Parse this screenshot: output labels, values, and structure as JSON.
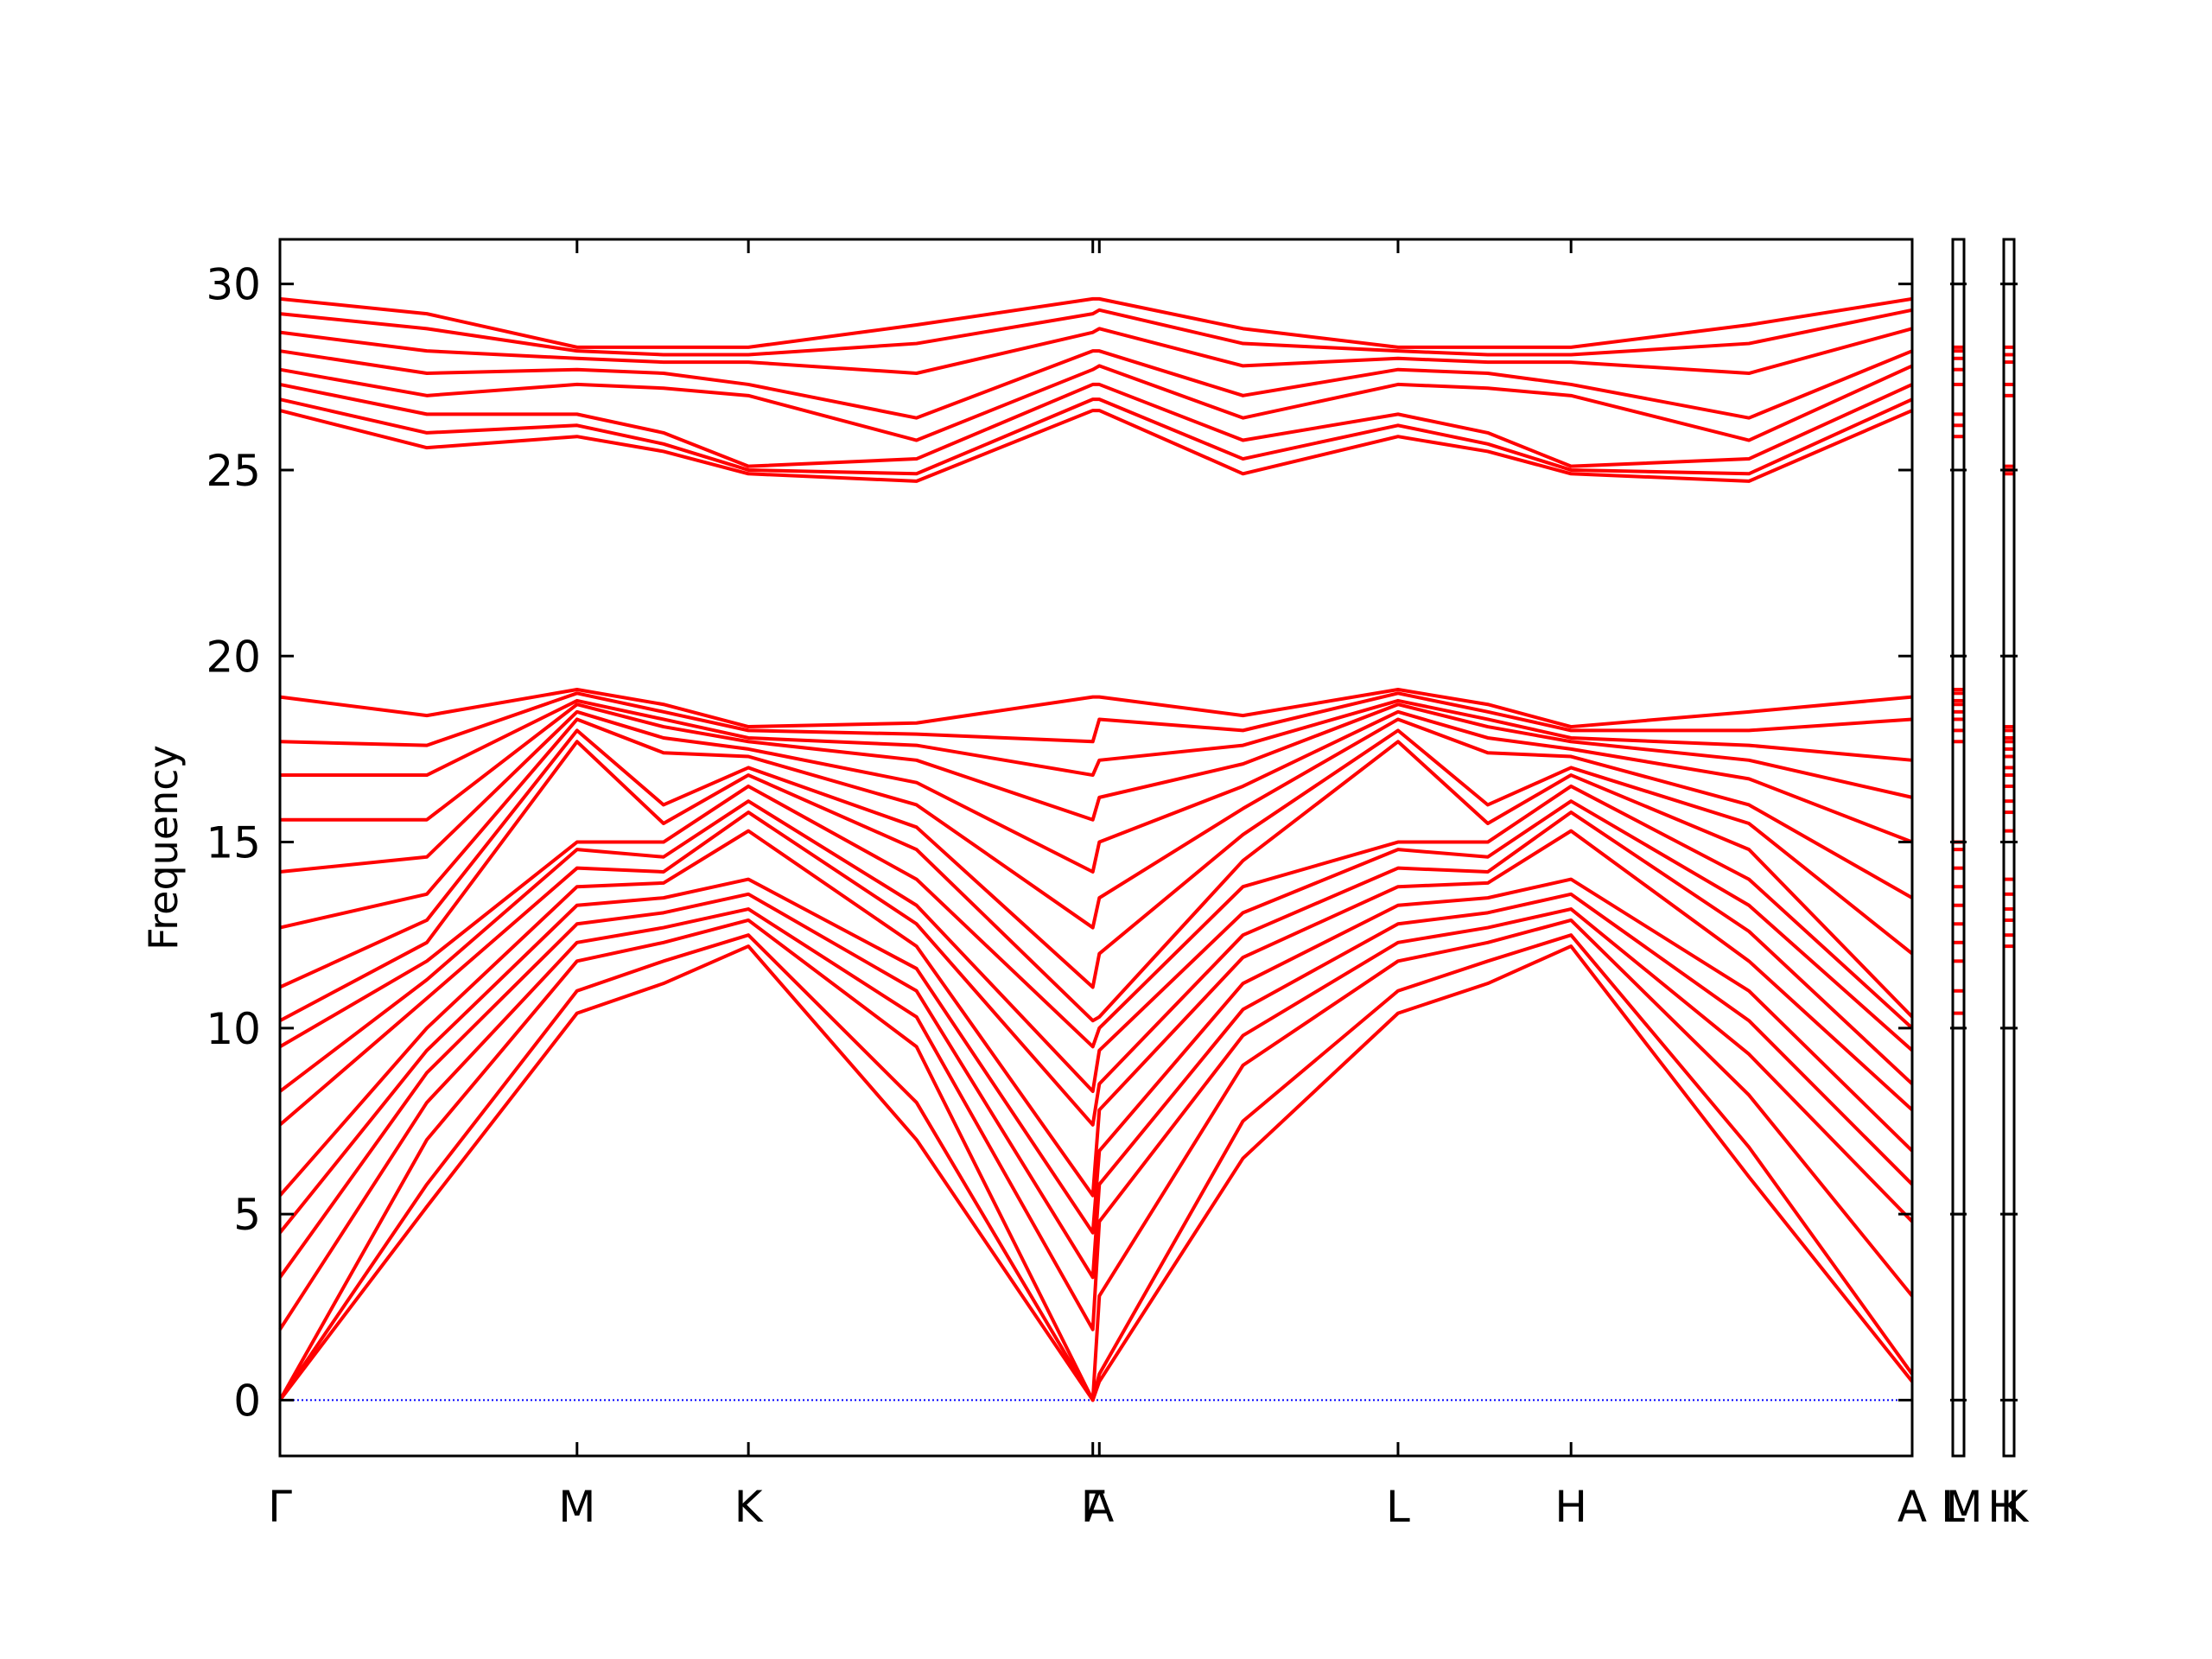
{
  "chart_data": [
    {
      "type": "line",
      "ylabel": "Frequency",
      "color": "#ff0000",
      "hline": 0,
      "hline_color": "#0000ff",
      "ytick_labels": true,
      "x": [
        0,
        0.09,
        0.182,
        0.235,
        0.287,
        0.39,
        0.498,
        0.502,
        0.59,
        0.685,
        0.74,
        0.791,
        0.9,
        1.0
      ],
      "xlim": [
        0,
        1.0
      ],
      "ylim": [
        -1.5,
        31.2
      ],
      "yticks": [
        0,
        5,
        10,
        15,
        20,
        25,
        30
      ],
      "xticks": [
        {
          "value": 0,
          "label": "Γ"
        },
        {
          "value": 0.182,
          "label": "M"
        },
        {
          "value": 0.287,
          "label": "K"
        },
        {
          "value": 0.498,
          "label": "Γ"
        },
        {
          "value": 0.502,
          "label": "A"
        },
        {
          "value": 0.685,
          "label": "L"
        },
        {
          "value": 0.791,
          "label": "H"
        },
        {
          "value": 1.0,
          "label": "A"
        }
      ],
      "series": [
        {
          "values": [
            0,
            5.2,
            10.4,
            11.2,
            12.2,
            7.0,
            0,
            0.5,
            6.5,
            10.4,
            11.2,
            12.2,
            6.0,
            0.5
          ]
        },
        {
          "values": [
            0,
            5.8,
            11.0,
            11.8,
            12.5,
            8.0,
            0,
            0.7,
            7.5,
            11.0,
            11.8,
            12.5,
            6.8,
            0.7
          ]
        },
        {
          "values": [
            0,
            7.0,
            11.8,
            12.3,
            12.9,
            9.5,
            0,
            2.8,
            9.0,
            11.8,
            12.3,
            12.9,
            8.2,
            2.8
          ]
        },
        {
          "values": [
            1.9,
            8.0,
            12.3,
            12.7,
            13.2,
            10.3,
            1.9,
            4.8,
            9.8,
            12.3,
            12.7,
            13.2,
            9.3,
            4.8
          ]
        },
        {
          "values": [
            3.3,
            8.8,
            12.8,
            13.1,
            13.6,
            11.0,
            3.3,
            5.8,
            10.5,
            12.8,
            13.1,
            13.6,
            10.2,
            5.8
          ]
        },
        {
          "values": [
            4.5,
            9.4,
            13.3,
            13.5,
            14.0,
            11.6,
            4.5,
            6.7,
            11.2,
            13.3,
            13.5,
            14.0,
            11.0,
            6.7
          ]
        },
        {
          "values": [
            5.5,
            10.0,
            13.8,
            13.9,
            15.3,
            12.2,
            5.5,
            7.8,
            11.9,
            13.8,
            13.9,
            15.3,
            11.8,
            7.8
          ]
        },
        {
          "values": [
            7.4,
            10.8,
            14.3,
            14.2,
            15.8,
            12.8,
            7.4,
            8.5,
            12.5,
            14.3,
            14.2,
            15.8,
            12.6,
            8.5
          ]
        },
        {
          "values": [
            8.3,
            11.3,
            14.8,
            14.6,
            16.1,
            13.3,
            8.3,
            9.4,
            13.1,
            14.8,
            14.6,
            16.1,
            13.3,
            9.4
          ]
        },
        {
          "values": [
            9.5,
            11.8,
            15.0,
            15.0,
            16.5,
            14.0,
            9.5,
            10.0,
            13.8,
            15.0,
            15.0,
            16.5,
            14.0,
            10.0
          ]
        },
        {
          "values": [
            10.2,
            12.3,
            17.7,
            15.5,
            16.8,
            14.8,
            10.2,
            10.3,
            14.5,
            17.7,
            15.5,
            16.8,
            14.8,
            10.3
          ]
        },
        {
          "values": [
            11.1,
            12.9,
            18.0,
            16.0,
            17.0,
            15.4,
            11.1,
            12.0,
            15.2,
            18.0,
            16.0,
            17.0,
            15.5,
            12.0
          ]
        },
        {
          "values": [
            12.7,
            13.6,
            18.3,
            17.4,
            17.3,
            16.0,
            12.7,
            13.5,
            15.9,
            18.3,
            17.4,
            17.3,
            16.0,
            13.5
          ]
        },
        {
          "values": [
            14.2,
            14.6,
            18.5,
            17.8,
            17.5,
            16.6,
            14.2,
            15.0,
            16.5,
            18.5,
            17.8,
            17.5,
            16.7,
            15.0
          ]
        },
        {
          "values": [
            15.6,
            15.6,
            18.7,
            18.1,
            17.7,
            17.2,
            15.6,
            16.2,
            17.1,
            18.7,
            18.1,
            17.7,
            17.2,
            16.2
          ]
        },
        {
          "values": [
            16.8,
            16.8,
            18.8,
            18.3,
            17.8,
            17.6,
            16.8,
            17.2,
            17.6,
            18.8,
            18.3,
            17.8,
            17.6,
            17.2
          ]
        },
        {
          "values": [
            17.7,
            17.6,
            19.0,
            18.5,
            18.0,
            17.9,
            17.7,
            18.3,
            18.0,
            19.0,
            18.5,
            18.0,
            18.0,
            18.3
          ]
        },
        {
          "values": [
            18.9,
            18.4,
            19.1,
            18.7,
            18.1,
            18.2,
            18.9,
            18.9,
            18.4,
            19.1,
            18.7,
            18.1,
            18.5,
            18.9
          ]
        },
        {
          "values": [
            26.6,
            25.6,
            25.9,
            25.5,
            24.9,
            24.7,
            26.6,
            26.6,
            24.9,
            25.9,
            25.5,
            24.9,
            24.7,
            26.6
          ]
        },
        {
          "values": [
            26.9,
            26.0,
            26.2,
            25.7,
            25.0,
            24.9,
            26.9,
            26.9,
            25.3,
            26.2,
            25.7,
            25.0,
            24.9,
            26.9
          ]
        },
        {
          "values": [
            27.3,
            26.5,
            26.5,
            26.0,
            25.1,
            25.3,
            27.3,
            27.3,
            25.8,
            26.5,
            26.0,
            25.1,
            25.3,
            27.3
          ]
        },
        {
          "values": [
            27.7,
            27.0,
            27.3,
            27.2,
            27.0,
            25.8,
            27.7,
            27.8,
            26.4,
            27.3,
            27.2,
            27.0,
            25.8,
            27.8
          ]
        },
        {
          "values": [
            28.2,
            27.6,
            27.7,
            27.6,
            27.3,
            26.4,
            28.2,
            28.2,
            27.0,
            27.7,
            27.6,
            27.3,
            26.4,
            28.2
          ]
        },
        {
          "values": [
            28.7,
            28.2,
            28.0,
            27.9,
            27.9,
            27.6,
            28.7,
            28.8,
            27.8,
            28.0,
            27.9,
            27.9,
            27.6,
            28.8
          ]
        },
        {
          "values": [
            29.2,
            28.8,
            28.2,
            28.1,
            28.1,
            28.4,
            29.2,
            29.3,
            28.4,
            28.2,
            28.1,
            28.1,
            28.4,
            29.3
          ]
        },
        {
          "values": [
            29.6,
            29.2,
            28.3,
            28.3,
            28.3,
            28.9,
            29.6,
            29.6,
            28.8,
            28.3,
            28.3,
            28.3,
            28.9,
            29.6
          ]
        }
      ]
    },
    {
      "type": "line",
      "color": "#ff0000",
      "ytick_labels": false,
      "x": [
        0,
        1
      ],
      "xlim": [
        0,
        1
      ],
      "ylim": [
        -1.5,
        31.2
      ],
      "yticks": [
        0,
        5,
        10,
        15,
        20,
        25,
        30
      ],
      "xticks": [
        {
          "value": 0,
          "label": "L"
        },
        {
          "value": 1,
          "label": "M"
        }
      ],
      "series": [
        {
          "values": [
            10.4,
            10.4
          ]
        },
        {
          "values": [
            11.0,
            11.0
          ]
        },
        {
          "values": [
            11.8,
            11.8
          ]
        },
        {
          "values": [
            12.3,
            12.3
          ]
        },
        {
          "values": [
            12.8,
            12.8
          ]
        },
        {
          "values": [
            13.3,
            13.3
          ]
        },
        {
          "values": [
            13.8,
            13.8
          ]
        },
        {
          "values": [
            14.3,
            14.3
          ]
        },
        {
          "values": [
            14.8,
            14.8
          ]
        },
        {
          "values": [
            15.0,
            15.0
          ]
        },
        {
          "values": [
            17.7,
            17.7
          ]
        },
        {
          "values": [
            18.0,
            18.0
          ]
        },
        {
          "values": [
            18.3,
            18.3
          ]
        },
        {
          "values": [
            18.5,
            18.5
          ]
        },
        {
          "values": [
            18.7,
            18.7
          ]
        },
        {
          "values": [
            18.8,
            18.8
          ]
        },
        {
          "values": [
            19.0,
            19.0
          ]
        },
        {
          "values": [
            19.1,
            19.1
          ]
        },
        {
          "values": [
            25.9,
            25.9
          ]
        },
        {
          "values": [
            26.2,
            26.2
          ]
        },
        {
          "values": [
            26.5,
            26.5
          ]
        },
        {
          "values": [
            27.3,
            27.3
          ]
        },
        {
          "values": [
            27.7,
            27.7
          ]
        },
        {
          "values": [
            28.0,
            28.0
          ]
        },
        {
          "values": [
            28.2,
            28.2
          ]
        },
        {
          "values": [
            28.3,
            28.3
          ]
        }
      ]
    },
    {
      "type": "line",
      "color": "#ff0000",
      "ytick_labels": false,
      "x": [
        0,
        1
      ],
      "xlim": [
        0,
        1
      ],
      "ylim": [
        -1.5,
        31.2
      ],
      "yticks": [
        0,
        5,
        10,
        15,
        20,
        25,
        30
      ],
      "xticks": [
        {
          "value": 0,
          "label": "H"
        },
        {
          "value": 1,
          "label": "K"
        }
      ],
      "series": [
        {
          "values": [
            12.2,
            12.2
          ]
        },
        {
          "values": [
            12.5,
            12.5
          ]
        },
        {
          "values": [
            12.9,
            12.9
          ]
        },
        {
          "values": [
            13.2,
            13.2
          ]
        },
        {
          "values": [
            13.6,
            13.6
          ]
        },
        {
          "values": [
            14.0,
            14.0
          ]
        },
        {
          "values": [
            15.3,
            15.3
          ]
        },
        {
          "values": [
            15.8,
            15.8
          ]
        },
        {
          "values": [
            16.1,
            16.1
          ]
        },
        {
          "values": [
            16.5,
            16.5
          ]
        },
        {
          "values": [
            16.8,
            16.8
          ]
        },
        {
          "values": [
            17.0,
            17.0
          ]
        },
        {
          "values": [
            17.3,
            17.3
          ]
        },
        {
          "values": [
            17.5,
            17.5
          ]
        },
        {
          "values": [
            17.7,
            17.7
          ]
        },
        {
          "values": [
            17.8,
            17.8
          ]
        },
        {
          "values": [
            18.0,
            18.0
          ]
        },
        {
          "values": [
            18.1,
            18.1
          ]
        },
        {
          "values": [
            24.9,
            24.9
          ]
        },
        {
          "values": [
            25.0,
            25.0
          ]
        },
        {
          "values": [
            25.1,
            25.1
          ]
        },
        {
          "values": [
            27.0,
            27.0
          ]
        },
        {
          "values": [
            27.3,
            27.3
          ]
        },
        {
          "values": [
            27.9,
            27.9
          ]
        },
        {
          "values": [
            28.1,
            28.1
          ]
        },
        {
          "values": [
            28.3,
            28.3
          ]
        }
      ]
    }
  ]
}
